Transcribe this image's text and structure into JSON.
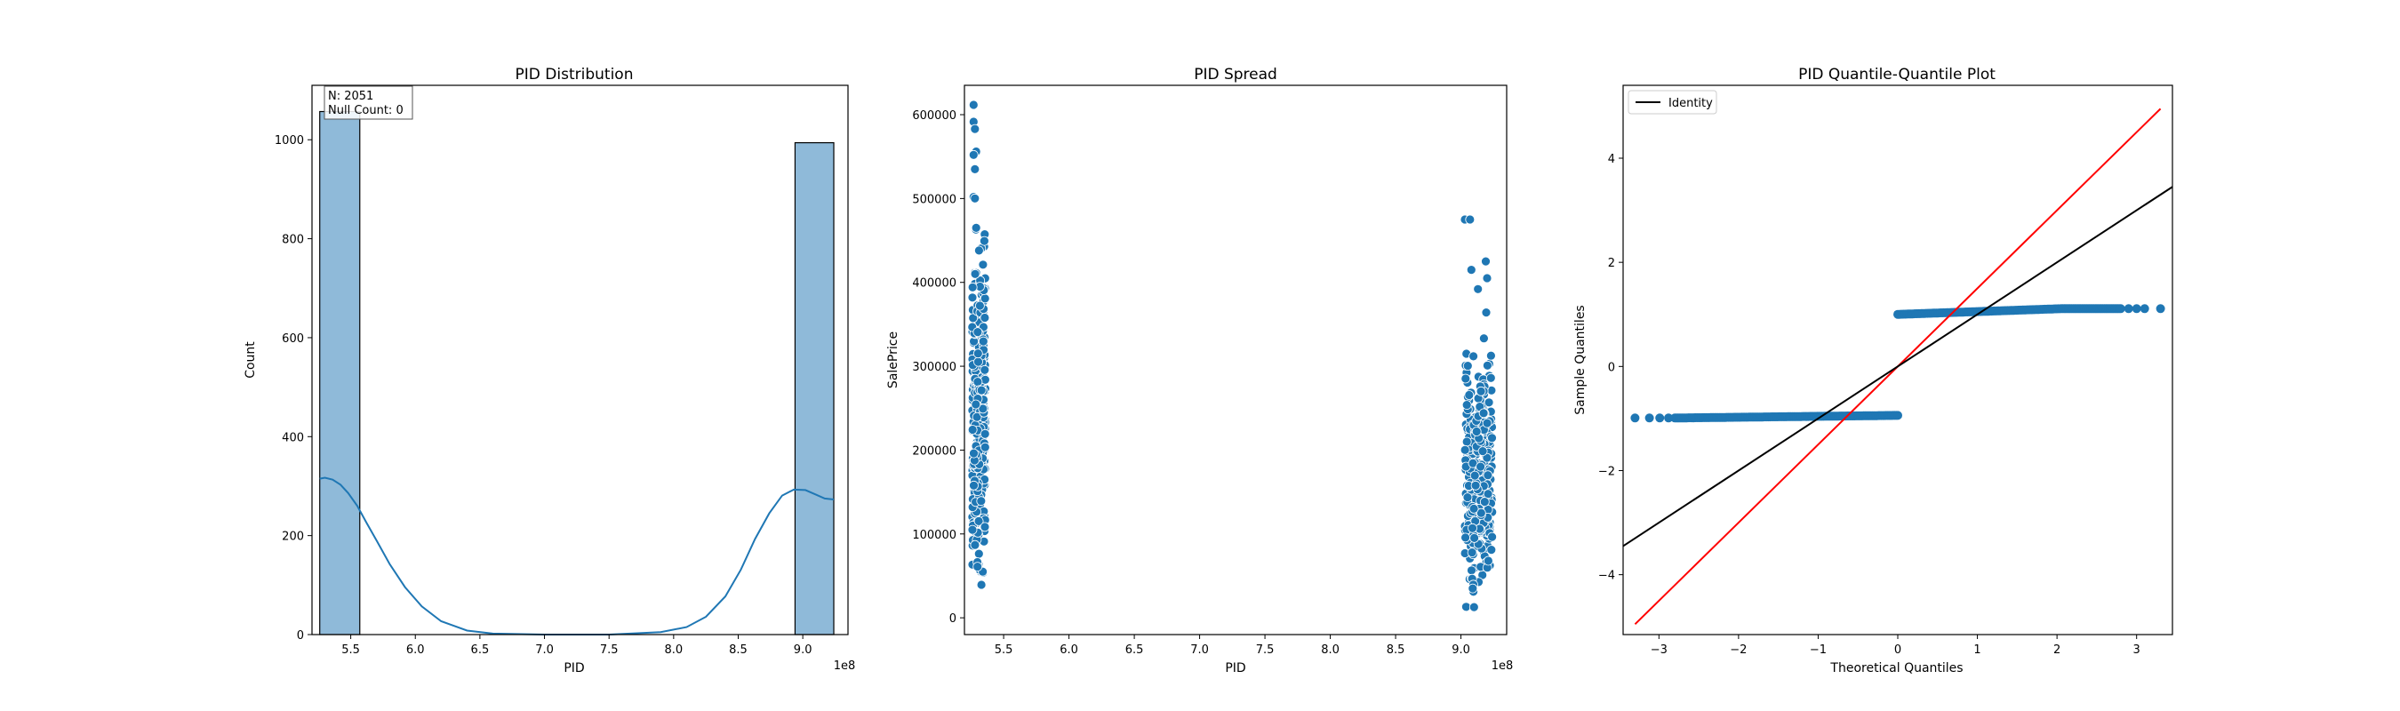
{
  "colors": {
    "bar_fill": "#8fbad9",
    "series_blue": "#1f77b4",
    "ref_line_red": "#ff0000",
    "identity_line": "#000000",
    "marker_edge": "#ffffff"
  },
  "chart_data": [
    {
      "type": "bar",
      "title": "PID Distribution",
      "xlabel": "PID",
      "ylabel": "Count",
      "x_offset_text": "1e8",
      "xlim": [
        5.2,
        9.35
      ],
      "ylim": [
        0,
        1110
      ],
      "xticks": [
        5.5,
        6.0,
        6.5,
        7.0,
        7.5,
        8.0,
        8.5,
        9.0
      ],
      "xtick_labels": [
        "5.5",
        "6.0",
        "6.5",
        "7.0",
        "7.5",
        "8.0",
        "8.5",
        "9.0"
      ],
      "yticks": [
        0,
        200,
        400,
        600,
        800,
        1000
      ],
      "ytick_labels": [
        "0",
        "200",
        "400",
        "600",
        "800",
        "1000"
      ],
      "bins": [
        {
          "x0": 5.26,
          "x1": 5.57,
          "count": 1057
        },
        {
          "x0": 5.57,
          "x1": 5.87,
          "count": 0
        },
        {
          "x0": 5.87,
          "x1": 6.18,
          "count": 0
        },
        {
          "x0": 6.18,
          "x1": 6.49,
          "count": 0
        },
        {
          "x0": 6.49,
          "x1": 6.79,
          "count": 0
        },
        {
          "x0": 6.79,
          "x1": 7.1,
          "count": 0
        },
        {
          "x0": 7.1,
          "x1": 7.41,
          "count": 0
        },
        {
          "x0": 7.41,
          "x1": 7.71,
          "count": 0
        },
        {
          "x0": 7.71,
          "x1": 8.02,
          "count": 0
        },
        {
          "x0": 8.02,
          "x1": 8.33,
          "count": 0
        },
        {
          "x0": 8.33,
          "x1": 8.63,
          "count": 0
        },
        {
          "x0": 8.63,
          "x1": 8.94,
          "count": 0
        },
        {
          "x0": 8.94,
          "x1": 9.24,
          "count": 994
        }
      ],
      "kde": {
        "x": [
          5.26,
          5.3,
          5.36,
          5.42,
          5.48,
          5.55,
          5.62,
          5.7,
          5.8,
          5.92,
          6.05,
          6.2,
          6.4,
          6.6,
          7.0,
          7.5,
          7.9,
          8.1,
          8.25,
          8.4,
          8.52,
          8.63,
          8.74,
          8.84,
          8.93,
          9.02,
          9.1,
          9.17,
          9.24
        ],
        "y": [
          315,
          317,
          313,
          303,
          286,
          260,
          227,
          190,
          143,
          96,
          57,
          27,
          8,
          2,
          0,
          0,
          5,
          15,
          36,
          77,
          131,
          193,
          245,
          281,
          293,
          292,
          283,
          275,
          273
        ]
      },
      "annotation": [
        "N: 2051",
        "Null Count: 0"
      ]
    },
    {
      "type": "scatter",
      "title": "PID Spread",
      "xlabel": "PID",
      "ylabel": "SalePrice",
      "x_offset_text": "1e8",
      "xlim": [
        5.2,
        9.35
      ],
      "ylim": [
        -20000,
        635000
      ],
      "xticks": [
        5.5,
        6.0,
        6.5,
        7.0,
        7.5,
        8.0,
        8.5,
        9.0
      ],
      "xtick_labels": [
        "5.5",
        "6.0",
        "6.5",
        "7.0",
        "7.5",
        "8.0",
        "8.5",
        "9.0"
      ],
      "yticks": [
        0,
        100000,
        200000,
        300000,
        400000,
        500000,
        600000
      ],
      "ytick_labels": [
        "0",
        "100000",
        "200000",
        "300000",
        "400000",
        "500000",
        "600000"
      ],
      "clusters": [
        {
          "x_min": 5.26,
          "x_max": 5.36,
          "y_min": 40000,
          "y_max": 560000,
          "n": 360
        },
        {
          "x_min": 9.03,
          "x_max": 9.24,
          "y_min": 15000,
          "y_max": 425000,
          "n": 330
        }
      ],
      "points": [
        {
          "x": 5.27,
          "y": 611657
        },
        {
          "x": 5.27,
          "y": 591587
        },
        {
          "x": 5.28,
          "y": 582933
        },
        {
          "x": 5.29,
          "y": 556000
        },
        {
          "x": 5.27,
          "y": 552000
        },
        {
          "x": 5.28,
          "y": 535000
        },
        {
          "x": 5.27,
          "y": 501837
        },
        {
          "x": 5.28,
          "y": 500067
        },
        {
          "x": 5.29,
          "y": 465000
        },
        {
          "x": 5.33,
          "y": 39300
        },
        {
          "x": 5.34,
          "y": 55000
        },
        {
          "x": 5.3,
          "y": 61000
        },
        {
          "x": 9.03,
          "y": 475000
        },
        {
          "x": 9.07,
          "y": 475000
        },
        {
          "x": 9.19,
          "y": 425000
        },
        {
          "x": 9.08,
          "y": 415000
        },
        {
          "x": 9.2,
          "y": 405000
        },
        {
          "x": 9.13,
          "y": 392000
        },
        {
          "x": 9.04,
          "y": 13100
        },
        {
          "x": 9.1,
          "y": 12789
        },
        {
          "x": 9.09,
          "y": 35000
        },
        {
          "x": 9.21,
          "y": 68000
        }
      ]
    },
    {
      "type": "scatter",
      "title": "PID Quantile-Quantile Plot",
      "xlabel": "Theoretical Quantiles",
      "ylabel": "Sample Quantiles",
      "xlim": [
        -3.45,
        3.45
      ],
      "ylim": [
        -5.15,
        5.4
      ],
      "xticks": [
        -3,
        -2,
        -1,
        0,
        1,
        2,
        3
      ],
      "xtick_labels": [
        "−3",
        "−2",
        "−1",
        "0",
        "1",
        "2",
        "3"
      ],
      "yticks": [
        -4,
        -2,
        0,
        2,
        4
      ],
      "ytick_labels": [
        "−4",
        "−2",
        "0",
        "2",
        "4"
      ],
      "legend": {
        "entries": [
          "Identity"
        ],
        "placement": "upper-left"
      },
      "lower_cluster": {
        "x": [
          -3.3,
          0.0
        ],
        "y": [
          -0.99,
          -0.94
        ]
      },
      "upper_cluster": {
        "x": [
          0.0,
          3.3
        ],
        "y": [
          1.0,
          1.11
        ]
      },
      "lower_outliers_x": [
        -3.3,
        -3.12,
        -2.99,
        -2.88
      ],
      "upper_outliers_x": [
        2.9,
        3.0,
        3.1,
        3.3
      ],
      "identity_line": {
        "x": [
          -3.45,
          3.45
        ],
        "y": [
          -3.45,
          3.45
        ]
      },
      "reference_line": {
        "x": [
          -3.3,
          3.3
        ],
        "y": [
          -4.95,
          4.95
        ]
      }
    }
  ]
}
